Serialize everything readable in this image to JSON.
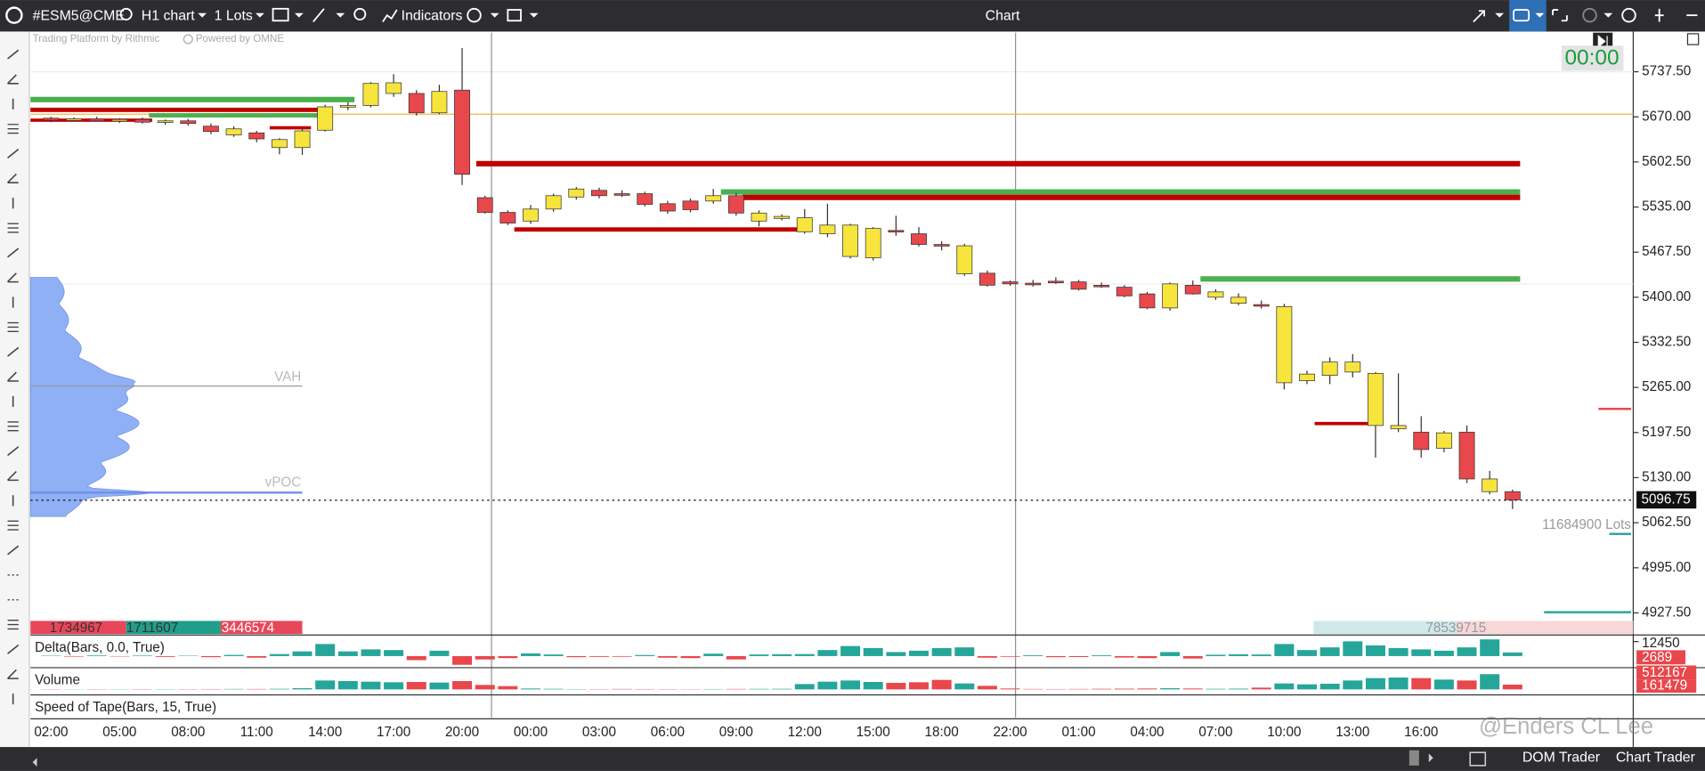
{
  "toolbar": {
    "symbol": "#ESM5@CME",
    "timeframe": "H1 chart",
    "quantity": "1 Lots",
    "indicators": "Indicators",
    "window_title": "Chart"
  },
  "branding": {
    "platform": "Trading Platform by Rithmic",
    "powered": "Powered by OMNE"
  },
  "timer": "00:00",
  "profile": {
    "vah": "VAH",
    "vpoc": "vPOC"
  },
  "lots_label": "11684900 Lots",
  "stats": [
    1734967,
    1711607,
    3446574
  ],
  "right_stat": 78539715,
  "chart_data": {
    "type": "candlestick",
    "categories": [
      "02:00",
      null,
      null,
      "05:00",
      null,
      null,
      "08:00",
      null,
      null,
      "11:00",
      null,
      null,
      "14:00",
      null,
      null,
      "17:00",
      null,
      null,
      "20:00",
      null,
      null,
      "00:00",
      null,
      null,
      "03:00",
      null,
      null,
      "06:00",
      null,
      null,
      "09:00",
      null,
      null,
      "12:00",
      null,
      null,
      "15:00",
      null,
      null,
      "18:00",
      null,
      null,
      "22:00",
      null,
      null,
      "01:00",
      null,
      null,
      "04:00",
      null,
      null,
      "07:00",
      null,
      null,
      "10:00",
      null,
      null,
      "13:00",
      null,
      null,
      "16:00",
      null,
      null,
      null,
      null
    ],
    "open": [
      5668,
      5665,
      5667,
      5664,
      5666,
      5662,
      5664,
      5656,
      5643,
      5646,
      5624,
      5624,
      5650,
      5685,
      5687,
      5705,
      5705,
      5676,
      5710,
      5549,
      5527,
      5514,
      5532,
      5550,
      5560,
      5555,
      5555,
      5540,
      5544,
      5544,
      5552,
      5514,
      5518,
      5498,
      5495,
      5461,
      5459,
      5500,
      5495,
      5479,
      5435,
      5436,
      5423,
      5421,
      5424,
      5423,
      5418,
      5415,
      5405,
      5384,
      5418,
      5400,
      5391,
      5389,
      5272,
      5275,
      5283,
      5288,
      5208,
      5203,
      5198,
      5174,
      5198,
      5109,
      5109
    ],
    "high": [
      5670,
      5669,
      5670,
      5668,
      5669,
      5666,
      5667,
      5660,
      5656,
      5649,
      5638,
      5652,
      5688,
      5692,
      5722,
      5734,
      5710,
      5718,
      5773,
      5552,
      5530,
      5538,
      5555,
      5565,
      5564,
      5560,
      5558,
      5544,
      5548,
      5562,
      5556,
      5530,
      5524,
      5532,
      5540,
      5510,
      5505,
      5522,
      5505,
      5484,
      5480,
      5440,
      5425,
      5426,
      5430,
      5426,
      5422,
      5418,
      5408,
      5422,
      5425,
      5412,
      5406,
      5395,
      5390,
      5290,
      5310,
      5315,
      5288,
      5286,
      5222,
      5200,
      5208,
      5140,
      5112
    ],
    "low": [
      5662,
      5663,
      5663,
      5661,
      5660,
      5658,
      5657,
      5644,
      5640,
      5632,
      5614,
      5613,
      5648,
      5680,
      5684,
      5700,
      5672,
      5674,
      5568,
      5525,
      5508,
      5510,
      5528,
      5546,
      5548,
      5550,
      5536,
      5525,
      5527,
      5540,
      5522,
      5506,
      5515,
      5495,
      5490,
      5458,
      5455,
      5492,
      5476,
      5470,
      5432,
      5416,
      5417,
      5416,
      5420,
      5410,
      5414,
      5400,
      5382,
      5380,
      5404,
      5396,
      5388,
      5383,
      5262,
      5270,
      5270,
      5280,
      5160,
      5198,
      5160,
      5168,
      5122,
      5105,
      5083
    ],
    "close": [
      5665,
      5667,
      5664,
      5666,
      5662,
      5664,
      5660,
      5648,
      5652,
      5637,
      5636,
      5649,
      5685,
      5687,
      5720,
      5721,
      5676,
      5708,
      5584,
      5527,
      5511,
      5532,
      5552,
      5562,
      5552,
      5554,
      5539,
      5529,
      5531,
      5552,
      5526,
      5526,
      5521,
      5519,
      5508,
      5508,
      5503,
      5499,
      5479,
      5478,
      5477,
      5418,
      5420,
      5420,
      5423,
      5412,
      5417,
      5402,
      5384,
      5420,
      5405,
      5408,
      5400,
      5388,
      5386,
      5285,
      5303,
      5303,
      5286,
      5208,
      5172,
      5197,
      5128,
      5128,
      5096.75
    ],
    "up_color": "#f7e43c",
    "down_color": "#e8474c",
    "ylim": [
      4896,
      5796
    ],
    "yticks": [
      {
        "value": 5737.5,
        "label": "5737.50"
      },
      {
        "value": 5670,
        "label": "5670.00"
      },
      {
        "value": 5602.5,
        "label": "5602.50"
      },
      {
        "value": 5535,
        "label": "5535.00"
      },
      {
        "value": 5467.5,
        "label": "5467.50"
      },
      {
        "value": 5400,
        "label": "5400.00"
      },
      {
        "value": 5332.5,
        "label": "5332.50"
      },
      {
        "value": 5265,
        "label": "5265.00"
      },
      {
        "value": 5197.5,
        "label": "5197.50"
      },
      {
        "value": 5130,
        "label": "5130.00"
      },
      {
        "value": 5062.5,
        "label": "5062.50"
      },
      {
        "value": 4995,
        "label": "4995.00"
      },
      {
        "value": 4927.5,
        "label": "4927.50"
      }
    ],
    "grid": false
  },
  "delta_panel": {
    "type": "bar",
    "title": "Delta(Bars, 0.0, True)",
    "values": [
      300,
      -400,
      500,
      -300,
      400,
      -600,
      300,
      -800,
      900,
      -1200,
      1500,
      3500,
      9000,
      3500,
      5000,
      4500,
      -3000,
      4000,
      -6500,
      -2500,
      -1500,
      2000,
      1200,
      -800,
      -600,
      -500,
      800,
      -1200,
      -1500,
      1800,
      -2500,
      1200,
      1400,
      1500,
      4500,
      7500,
      6000,
      3000,
      4000,
      6000,
      6500,
      -1200,
      -500,
      600,
      -800,
      -700,
      600,
      -1100,
      -1500,
      3000,
      -1800,
      1000,
      1400,
      1200,
      9000,
      4500,
      6500,
      11000,
      8000,
      6000,
      5000,
      4000,
      6500,
      12450,
      2689
    ],
    "pos_color": "#26a69a",
    "neg_color": "#e8474c",
    "ylim": [
      -7000,
      12450
    ],
    "yticks": [
      12450
    ]
  },
  "volume_panel": {
    "type": "bar",
    "title": "Volume",
    "values": [
      8000,
      6000,
      9000,
      7000,
      10000,
      8000,
      9000,
      12000,
      15000,
      14000,
      20000,
      40000,
      300000,
      280000,
      260000,
      240000,
      250000,
      230000,
      280000,
      150000,
      110000,
      30000,
      20000,
      10000,
      10000,
      15000,
      12000,
      10000,
      8000,
      12000,
      15000,
      18000,
      20000,
      180000,
      260000,
      300000,
      250000,
      220000,
      240000,
      320000,
      200000,
      120000,
      30000,
      15000,
      12000,
      15000,
      20000,
      25000,
      30000,
      40000,
      30000,
      20000,
      25000,
      60000,
      200000,
      170000,
      190000,
      300000,
      380000,
      400000,
      380000,
      330000,
      300000,
      512167,
      161479
    ],
    "ylim": [
      0,
      512167
    ]
  },
  "speed_panel": {
    "title": "Speed of Tape(Bars, 15, True)"
  },
  "footer": {
    "dom": "DOM Trader",
    "chart_trader": "Chart Trader"
  },
  "watermark": "@Enders CL Lee"
}
